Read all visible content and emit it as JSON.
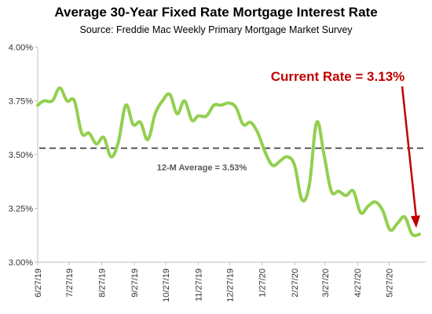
{
  "chart_data": {
    "type": "line",
    "title": "Average 30-Year Fixed Rate Mortgage Interest Rate",
    "subtitle": "Source: Freddie Mac Weekly Primary Mortgage Market Survey",
    "xlabel": "",
    "ylabel": "",
    "ylim": [
      3.0,
      4.0
    ],
    "y_ticks": [
      "4.00%",
      "3.75%",
      "3.50%",
      "3.25%",
      "3.00%"
    ],
    "y_tick_values": [
      4.0,
      3.75,
      3.5,
      3.25,
      3.0
    ],
    "x_tick_labels": [
      "6/27/19",
      "7/27/19",
      "8/27/19",
      "9/27/19",
      "10/27/19",
      "11/27/19",
      "12/27/19",
      "1/27/20",
      "2/27/20",
      "3/27/20",
      "4/27/20",
      "5/27/20"
    ],
    "grid": false,
    "legend": "none",
    "series": [
      {
        "color": "#92d050",
        "x": [
          "6/27/19",
          "7/3/19",
          "7/11/19",
          "7/18/19",
          "7/25/19",
          "8/1/19",
          "8/8/19",
          "8/15/19",
          "8/22/19",
          "8/29/19",
          "9/5/19",
          "9/12/19",
          "9/19/19",
          "9/26/19",
          "10/3/19",
          "10/10/19",
          "10/17/19",
          "10/24/19",
          "10/31/19",
          "11/7/19",
          "11/14/19",
          "11/21/19",
          "11/27/19",
          "12/5/19",
          "12/12/19",
          "12/19/19",
          "12/26/19",
          "1/2/20",
          "1/9/20",
          "1/16/20",
          "1/23/20",
          "1/30/20",
          "2/6/20",
          "2/13/20",
          "2/20/20",
          "2/27/20",
          "3/5/20",
          "3/12/20",
          "3/19/20",
          "3/26/20",
          "4/2/20",
          "4/9/20",
          "4/16/20",
          "4/23/20",
          "4/30/20",
          "5/7/20",
          "5/14/20",
          "5/21/20",
          "5/28/20",
          "6/4/20",
          "6/11/20",
          "6/18/20",
          "6/25/20"
        ],
        "values": [
          3.73,
          3.75,
          3.75,
          3.81,
          3.75,
          3.75,
          3.6,
          3.6,
          3.55,
          3.58,
          3.49,
          3.56,
          3.73,
          3.64,
          3.65,
          3.57,
          3.69,
          3.75,
          3.78,
          3.69,
          3.75,
          3.66,
          3.68,
          3.68,
          3.73,
          3.73,
          3.74,
          3.72,
          3.64,
          3.65,
          3.6,
          3.51,
          3.45,
          3.47,
          3.49,
          3.45,
          3.29,
          3.36,
          3.65,
          3.5,
          3.33,
          3.33,
          3.31,
          3.33,
          3.23,
          3.26,
          3.28,
          3.24,
          3.15,
          3.18,
          3.21,
          3.13,
          3.13
        ]
      }
    ],
    "reference_lines": [
      {
        "value": 3.53,
        "label": "12-M Average = 3.53%",
        "color": "#595959",
        "style": "dashed"
      }
    ],
    "annotations": [
      {
        "text": "Current Rate = 3.13%",
        "color": "#c00000"
      }
    ]
  }
}
